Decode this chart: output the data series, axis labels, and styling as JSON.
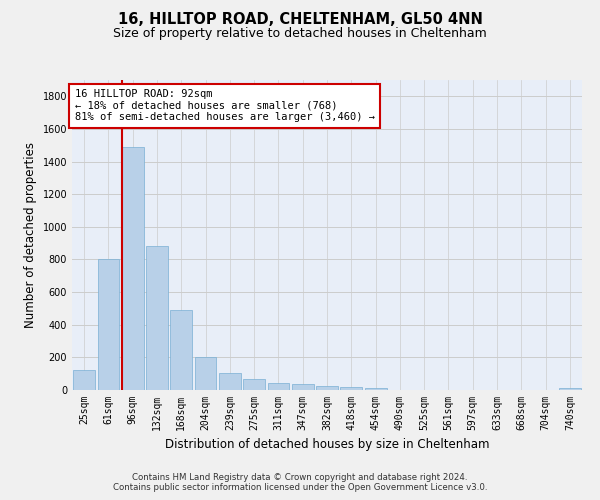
{
  "title": "16, HILLTOP ROAD, CHELTENHAM, GL50 4NN",
  "subtitle": "Size of property relative to detached houses in Cheltenham",
  "xlabel": "Distribution of detached houses by size in Cheltenham",
  "ylabel": "Number of detached properties",
  "categories": [
    "25sqm",
    "61sqm",
    "96sqm",
    "132sqm",
    "168sqm",
    "204sqm",
    "239sqm",
    "275sqm",
    "311sqm",
    "347sqm",
    "382sqm",
    "418sqm",
    "454sqm",
    "490sqm",
    "525sqm",
    "561sqm",
    "597sqm",
    "633sqm",
    "668sqm",
    "704sqm",
    "740sqm"
  ],
  "values": [
    125,
    800,
    1490,
    880,
    490,
    205,
    105,
    65,
    45,
    35,
    25,
    20,
    15,
    0,
    0,
    0,
    0,
    0,
    0,
    0,
    15
  ],
  "bar_color": "#b8d0e8",
  "bar_edgecolor": "#7aafd4",
  "vline_color": "#cc0000",
  "vline_index": 2,
  "ylim": [
    0,
    1900
  ],
  "yticks": [
    0,
    200,
    400,
    600,
    800,
    1000,
    1200,
    1400,
    1600,
    1800
  ],
  "annotation_lines": [
    "16 HILLTOP ROAD: 92sqm",
    "← 18% of detached houses are smaller (768)",
    "81% of semi-detached houses are larger (3,460) →"
  ],
  "annotation_box_facecolor": "#ffffff",
  "annotation_box_edgecolor": "#cc0000",
  "grid_color": "#cccccc",
  "ax_facecolor": "#e8eef8",
  "fig_facecolor": "#f0f0f0",
  "title_fontsize": 10.5,
  "subtitle_fontsize": 9,
  "ylabel_fontsize": 8.5,
  "xlabel_fontsize": 8.5,
  "tick_fontsize": 7,
  "ann_fontsize": 7.5,
  "footer_line1": "Contains HM Land Registry data © Crown copyright and database right 2024.",
  "footer_line2": "Contains public sector information licensed under the Open Government Licence v3.0."
}
